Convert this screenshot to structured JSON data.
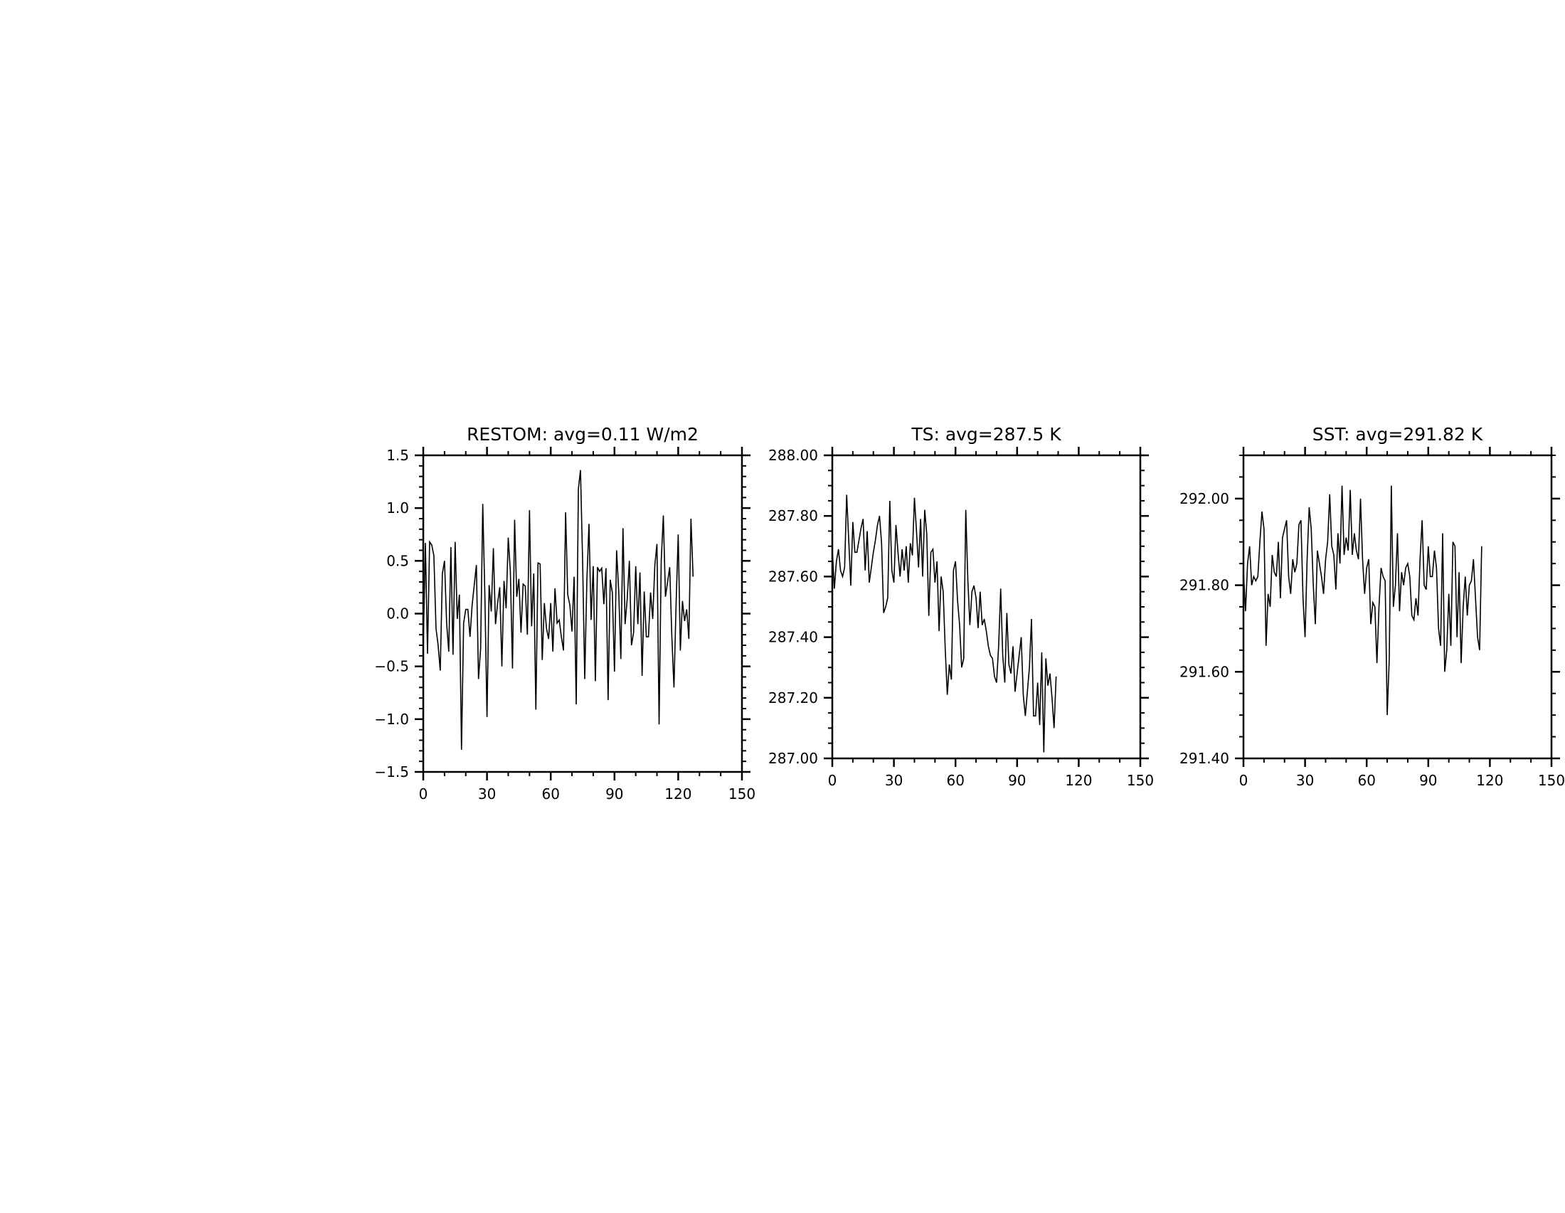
{
  "chart_data": [
    {
      "type": "line",
      "title": "RESTOM: avg=0.11 W/m2",
      "xlabel": "",
      "ylabel": "",
      "xlim": [
        0,
        150
      ],
      "ylim": [
        -1.5,
        1.5
      ],
      "xticks": [
        0,
        30,
        60,
        90,
        120,
        150
      ],
      "xtick_labels": [
        "0",
        "30",
        "60",
        "90",
        "120",
        "150"
      ],
      "yticks": [
        -1.5,
        -1.0,
        -0.5,
        0.0,
        0.5,
        1.0,
        1.5
      ],
      "ytick_labels": [
        "−1.5",
        "−1.0",
        "−0.5",
        "0.0",
        "0.5",
        "1.0",
        "1.5"
      ],
      "yminor_step": 0.1,
      "grid": false,
      "line_color": "#000000",
      "x_start": 0,
      "x_step": 1,
      "values": [
        -0.31,
        0.67,
        -0.38,
        0.68,
        0.65,
        0.55,
        -0.14,
        -0.3,
        -0.54,
        0.38,
        0.5,
        -0.09,
        -0.36,
        0.63,
        -0.39,
        0.68,
        -0.05,
        0.18,
        -1.29,
        -0.09,
        0.04,
        0.04,
        -0.22,
        0.08,
        0.27,
        0.46,
        -0.62,
        -0.33,
        1.04,
        0.17,
        -0.98,
        0.27,
        0.02,
        0.62,
        -0.1,
        0.1,
        0.25,
        -0.5,
        0.31,
        0.05,
        0.72,
        0.4,
        -0.52,
        0.89,
        0.16,
        0.33,
        -0.18,
        0.28,
        0.26,
        -0.2,
        0.98,
        -0.12,
        0.38,
        -0.91,
        0.48,
        0.47,
        -0.44,
        0.1,
        -0.14,
        -0.24,
        0.1,
        -0.36,
        0.24,
        -0.09,
        -0.06,
        -0.22,
        -0.35,
        0.96,
        0.18,
        0.08,
        -0.17,
        0.35,
        -0.86,
        1.18,
        1.36,
        0.5,
        -0.62,
        0.31,
        0.85,
        -0.06,
        0.45,
        -0.64,
        0.44,
        0.4,
        0.43,
        0.09,
        0.43,
        -0.82,
        0.32,
        0.2,
        -0.55,
        0.6,
        0.21,
        -0.43,
        0.81,
        -0.1,
        0.14,
        0.5,
        -0.3,
        -0.18,
        0.45,
        -0.1,
        0.39,
        -0.59,
        0.21,
        -0.22,
        -0.22,
        0.2,
        -0.05,
        0.46,
        0.66,
        -1.05,
        0.5,
        0.93,
        0.16,
        0.3,
        0.44,
        -0.22,
        -0.7,
        0.09,
        0.75,
        -0.35,
        0.12,
        -0.07,
        0.04,
        -0.24,
        0.9,
        0.35
      ]
    },
    {
      "type": "line",
      "title": "TS: avg=287.5 K",
      "xlabel": "",
      "ylabel": "",
      "xlim": [
        0,
        150
      ],
      "ylim": [
        287.0,
        288.0
      ],
      "xticks": [
        0,
        30,
        60,
        90,
        120,
        150
      ],
      "xtick_labels": [
        "0",
        "30",
        "60",
        "90",
        "120",
        "150"
      ],
      "yticks": [
        287.0,
        287.2,
        287.4,
        287.6,
        287.8,
        288.0
      ],
      "ytick_labels": [
        "287.00",
        "287.20",
        "287.40",
        "287.60",
        "287.80",
        "288.00"
      ],
      "yminor_step": 0.05,
      "grid": false,
      "line_color": "#000000",
      "x_start": 0,
      "x_step": 1,
      "values": [
        287.69,
        287.56,
        287.65,
        287.69,
        287.62,
        287.6,
        287.63,
        287.87,
        287.72,
        287.57,
        287.78,
        287.68,
        287.68,
        287.72,
        287.76,
        287.79,
        287.62,
        287.75,
        287.58,
        287.63,
        287.68,
        287.72,
        287.77,
        287.8,
        287.71,
        287.48,
        287.5,
        287.53,
        287.85,
        287.62,
        287.58,
        287.77,
        287.68,
        287.6,
        287.69,
        287.62,
        287.7,
        287.58,
        287.71,
        287.67,
        287.86,
        287.75,
        287.63,
        287.79,
        287.6,
        287.82,
        287.74,
        287.47,
        287.68,
        287.69,
        287.58,
        287.65,
        287.42,
        287.6,
        287.55,
        287.36,
        287.21,
        287.31,
        287.26,
        287.62,
        287.65,
        287.52,
        287.44,
        287.3,
        287.33,
        287.82,
        287.59,
        287.44,
        287.55,
        287.57,
        287.53,
        287.43,
        287.55,
        287.44,
        287.46,
        287.42,
        287.37,
        287.34,
        287.33,
        287.27,
        287.25,
        287.37,
        287.56,
        287.34,
        287.25,
        287.48,
        287.31,
        287.28,
        287.37,
        287.22,
        287.28,
        287.34,
        287.4,
        287.21,
        287.14,
        287.22,
        287.3,
        287.46,
        287.14,
        287.14,
        287.25,
        287.11,
        287.35,
        287.02,
        287.33,
        287.24,
        287.28,
        287.2,
        287.1,
        287.27
      ]
    },
    {
      "type": "line",
      "title": "SST: avg=291.82 K",
      "xlabel": "",
      "ylabel": "",
      "xlim": [
        0,
        150
      ],
      "ylim": [
        291.4,
        292.1
      ],
      "xticks": [
        0,
        30,
        60,
        90,
        120,
        150
      ],
      "xtick_labels": [
        "0",
        "30",
        "60",
        "90",
        "120",
        "150"
      ],
      "yticks": [
        291.4,
        291.6,
        291.8,
        292.0
      ],
      "ytick_labels": [
        "291.40",
        "291.60",
        "291.80",
        "292.00"
      ],
      "yminor_step": 0.05,
      "grid": false,
      "line_color": "#000000",
      "x_start": 0,
      "x_step": 1,
      "values": [
        291.83,
        291.74,
        291.85,
        291.89,
        291.8,
        291.82,
        291.81,
        291.82,
        291.9,
        291.97,
        291.93,
        291.66,
        291.78,
        291.75,
        291.87,
        291.83,
        291.82,
        291.9,
        291.77,
        291.91,
        291.93,
        291.95,
        291.82,
        291.78,
        291.86,
        291.83,
        291.85,
        291.94,
        291.95,
        291.77,
        291.68,
        291.86,
        291.98,
        291.93,
        291.8,
        291.71,
        291.88,
        291.85,
        291.82,
        291.78,
        291.86,
        291.9,
        292.01,
        291.89,
        291.87,
        291.79,
        291.92,
        291.85,
        292.03,
        291.87,
        291.91,
        291.88,
        292.02,
        291.87,
        291.92,
        291.88,
        291.86,
        292.0,
        291.86,
        291.78,
        291.84,
        291.86,
        291.71,
        291.76,
        291.75,
        291.62,
        291.75,
        291.84,
        291.82,
        291.81,
        291.5,
        291.63,
        292.03,
        291.75,
        291.8,
        291.92,
        291.74,
        291.83,
        291.8,
        291.84,
        291.85,
        291.82,
        291.73,
        291.72,
        291.77,
        291.73,
        291.86,
        291.95,
        291.8,
        291.79,
        291.89,
        291.82,
        291.82,
        291.88,
        291.84,
        291.7,
        291.66,
        291.92,
        291.6,
        291.65,
        291.78,
        291.66,
        291.9,
        291.89,
        291.68,
        291.83,
        291.62,
        291.75,
        291.82,
        291.73,
        291.8,
        291.81,
        291.86,
        291.77,
        291.68,
        291.65,
        291.89
      ]
    }
  ]
}
